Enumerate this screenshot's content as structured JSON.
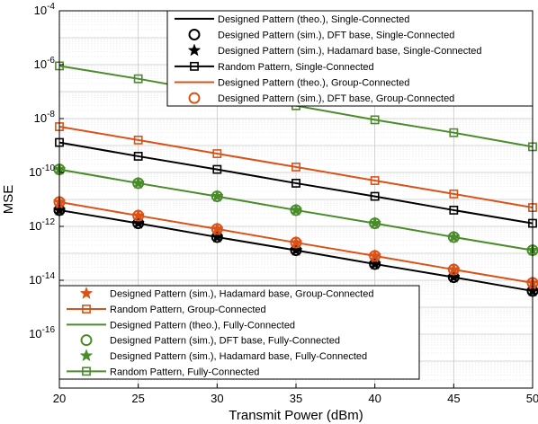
{
  "chart_data": {
    "type": "line",
    "xlabel": "Transmit Power (dBm)",
    "ylabel": "MSE",
    "x": [
      20,
      25,
      30,
      35,
      40,
      45,
      50
    ],
    "xlim": [
      20,
      50
    ],
    "ylim": [
      1e-18,
      0.0001
    ],
    "yscale": "log",
    "grid": true,
    "x_ticks": [
      "20",
      "25",
      "30",
      "35",
      "40",
      "45",
      "50"
    ],
    "y_ticks": [
      {
        "base": "10",
        "exp": "-4",
        "value": 0.0001
      },
      {
        "base": "10",
        "exp": "-6",
        "value": 1e-06
      },
      {
        "base": "10",
        "exp": "-8",
        "value": 1e-08
      },
      {
        "base": "10",
        "exp": "-10",
        "value": 1e-10
      },
      {
        "base": "10",
        "exp": "-12",
        "value": 1e-12
      },
      {
        "base": "10",
        "exp": "-14",
        "value": 1e-14
      },
      {
        "base": "10",
        "exp": "-16",
        "value": 1e-16
      }
    ],
    "series": [
      {
        "name": "Designed Pattern (theo.), Single-Connected",
        "color": "#000000",
        "marker": "none",
        "line": true,
        "values": [
          4e-12,
          1.3e-12,
          4e-13,
          1.3e-13,
          4e-14,
          1.3e-14,
          4e-15
        ]
      },
      {
        "name": "Designed Pattern (sim.), DFT base, Single-Connected",
        "color": "#000000",
        "marker": "circle",
        "line": false,
        "values": [
          4e-12,
          1.3e-12,
          4e-13,
          1.3e-13,
          4e-14,
          1.3e-14,
          4e-15
        ]
      },
      {
        "name": "Designed Pattern (sim.), Hadamard base, Single-Connected",
        "color": "#000000",
        "marker": "star",
        "line": false,
        "values": [
          4e-12,
          1.3e-12,
          4e-13,
          1.3e-13,
          4e-14,
          1.3e-14,
          4e-15
        ]
      },
      {
        "name": "Random Pattern, Single-Connected",
        "color": "#000000",
        "marker": "square",
        "line": true,
        "values": [
          1.3e-09,
          4e-10,
          1.3e-10,
          4e-11,
          1.3e-11,
          4e-12,
          1.3e-12
        ]
      },
      {
        "name": "Designed Pattern (theo.), Group-Connected",
        "color": "#d95319",
        "marker": "none",
        "line": true,
        "values": [
          8e-12,
          2.5e-12,
          8e-13,
          2.5e-13,
          8e-14,
          2.5e-14,
          8e-15
        ]
      },
      {
        "name": "Designed Pattern (sim.), DFT base, Group-Connected",
        "color": "#d95319",
        "marker": "circle",
        "line": false,
        "values": [
          8e-12,
          2.5e-12,
          8e-13,
          2.5e-13,
          8e-14,
          2.5e-14,
          8e-15
        ]
      },
      {
        "name": "Designed Pattern (sim.), Hadamard base, Group-Connected",
        "color": "#d95319",
        "marker": "star",
        "line": false,
        "values": [
          8e-12,
          2.5e-12,
          8e-13,
          2.5e-13,
          8e-14,
          2.5e-14,
          8e-15
        ]
      },
      {
        "name": "Random Pattern, Group-Connected",
        "color": "#d95319",
        "marker": "square",
        "line": true,
        "values": [
          5e-09,
          1.6e-09,
          5e-10,
          1.6e-10,
          5e-11,
          1.6e-11,
          5e-12
        ]
      },
      {
        "name": "Designed Pattern (theo.), Fully-Connected",
        "color": "#4a8c2a",
        "marker": "none",
        "line": true,
        "values": [
          1.3e-10,
          4e-11,
          1.3e-11,
          4e-12,
          1.3e-12,
          4e-13,
          1.3e-13
        ]
      },
      {
        "name": "Designed Pattern (sim.), DFT base, Fully-Connected",
        "color": "#4a8c2a",
        "marker": "circle",
        "line": false,
        "values": [
          1.3e-10,
          4e-11,
          1.3e-11,
          4e-12,
          1.3e-12,
          4e-13,
          1.3e-13
        ]
      },
      {
        "name": "Designed Pattern (sim.), Hadamard base, Fully-Connected",
        "color": "#4a8c2a",
        "marker": "star",
        "line": false,
        "values": [
          1.3e-10,
          4e-11,
          1.3e-11,
          4e-12,
          1.3e-12,
          4e-13,
          1.3e-13
        ]
      },
      {
        "name": "Random Pattern, Fully-Connected",
        "color": "#4a8c2a",
        "marker": "square",
        "line": true,
        "values": [
          9e-07,
          3e-07,
          9e-08,
          3e-08,
          9e-09,
          3e-09,
          9e-10
        ]
      }
    ],
    "legends": [
      {
        "placement": "top-right",
        "series": [
          0,
          1,
          2,
          3,
          4,
          5
        ]
      },
      {
        "placement": "bottom-left",
        "series": [
          6,
          7,
          8,
          9,
          10,
          11
        ]
      }
    ]
  }
}
